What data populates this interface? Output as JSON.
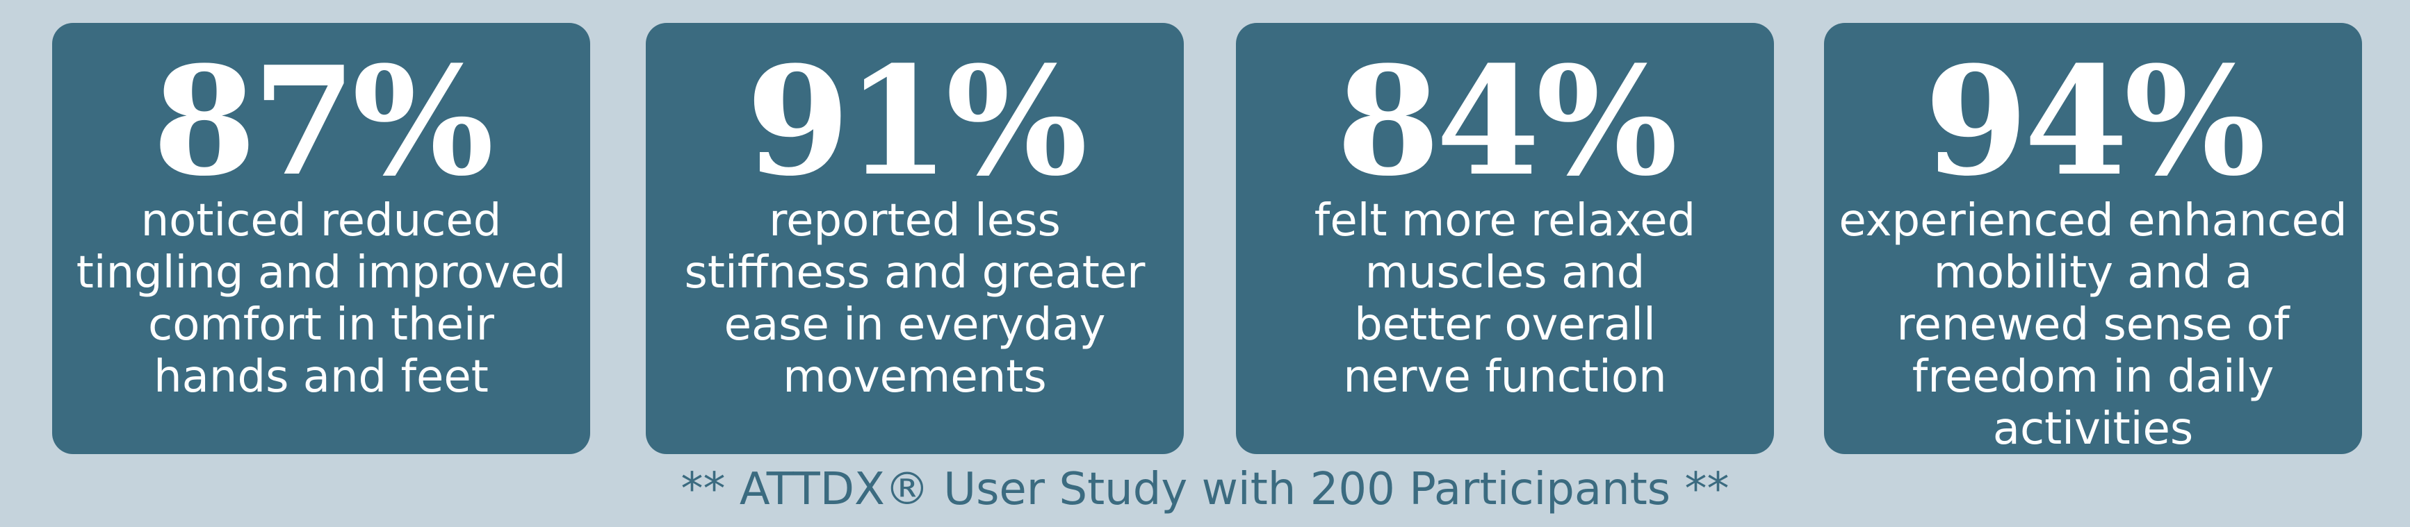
{
  "cards": [
    {
      "stat": "87%",
      "lines": [
        "noticed reduced",
        "tingling and improved",
        "comfort in their",
        "hands and feet"
      ]
    },
    {
      "stat": "91%",
      "lines": [
        "reported less",
        "stiffness and greater",
        "ease in everyday",
        "movements"
      ]
    },
    {
      "stat": "84%",
      "lines": [
        "felt more relaxed",
        "muscles and",
        "better overall",
        "nerve function"
      ]
    },
    {
      "stat": "94%",
      "lines": [
        "experienced enhanced",
        "mobility and a",
        "renewed sense of",
        "freedom in daily",
        "activities"
      ]
    }
  ],
  "footer": "** ATTDX® User Study with 200 Participants **"
}
